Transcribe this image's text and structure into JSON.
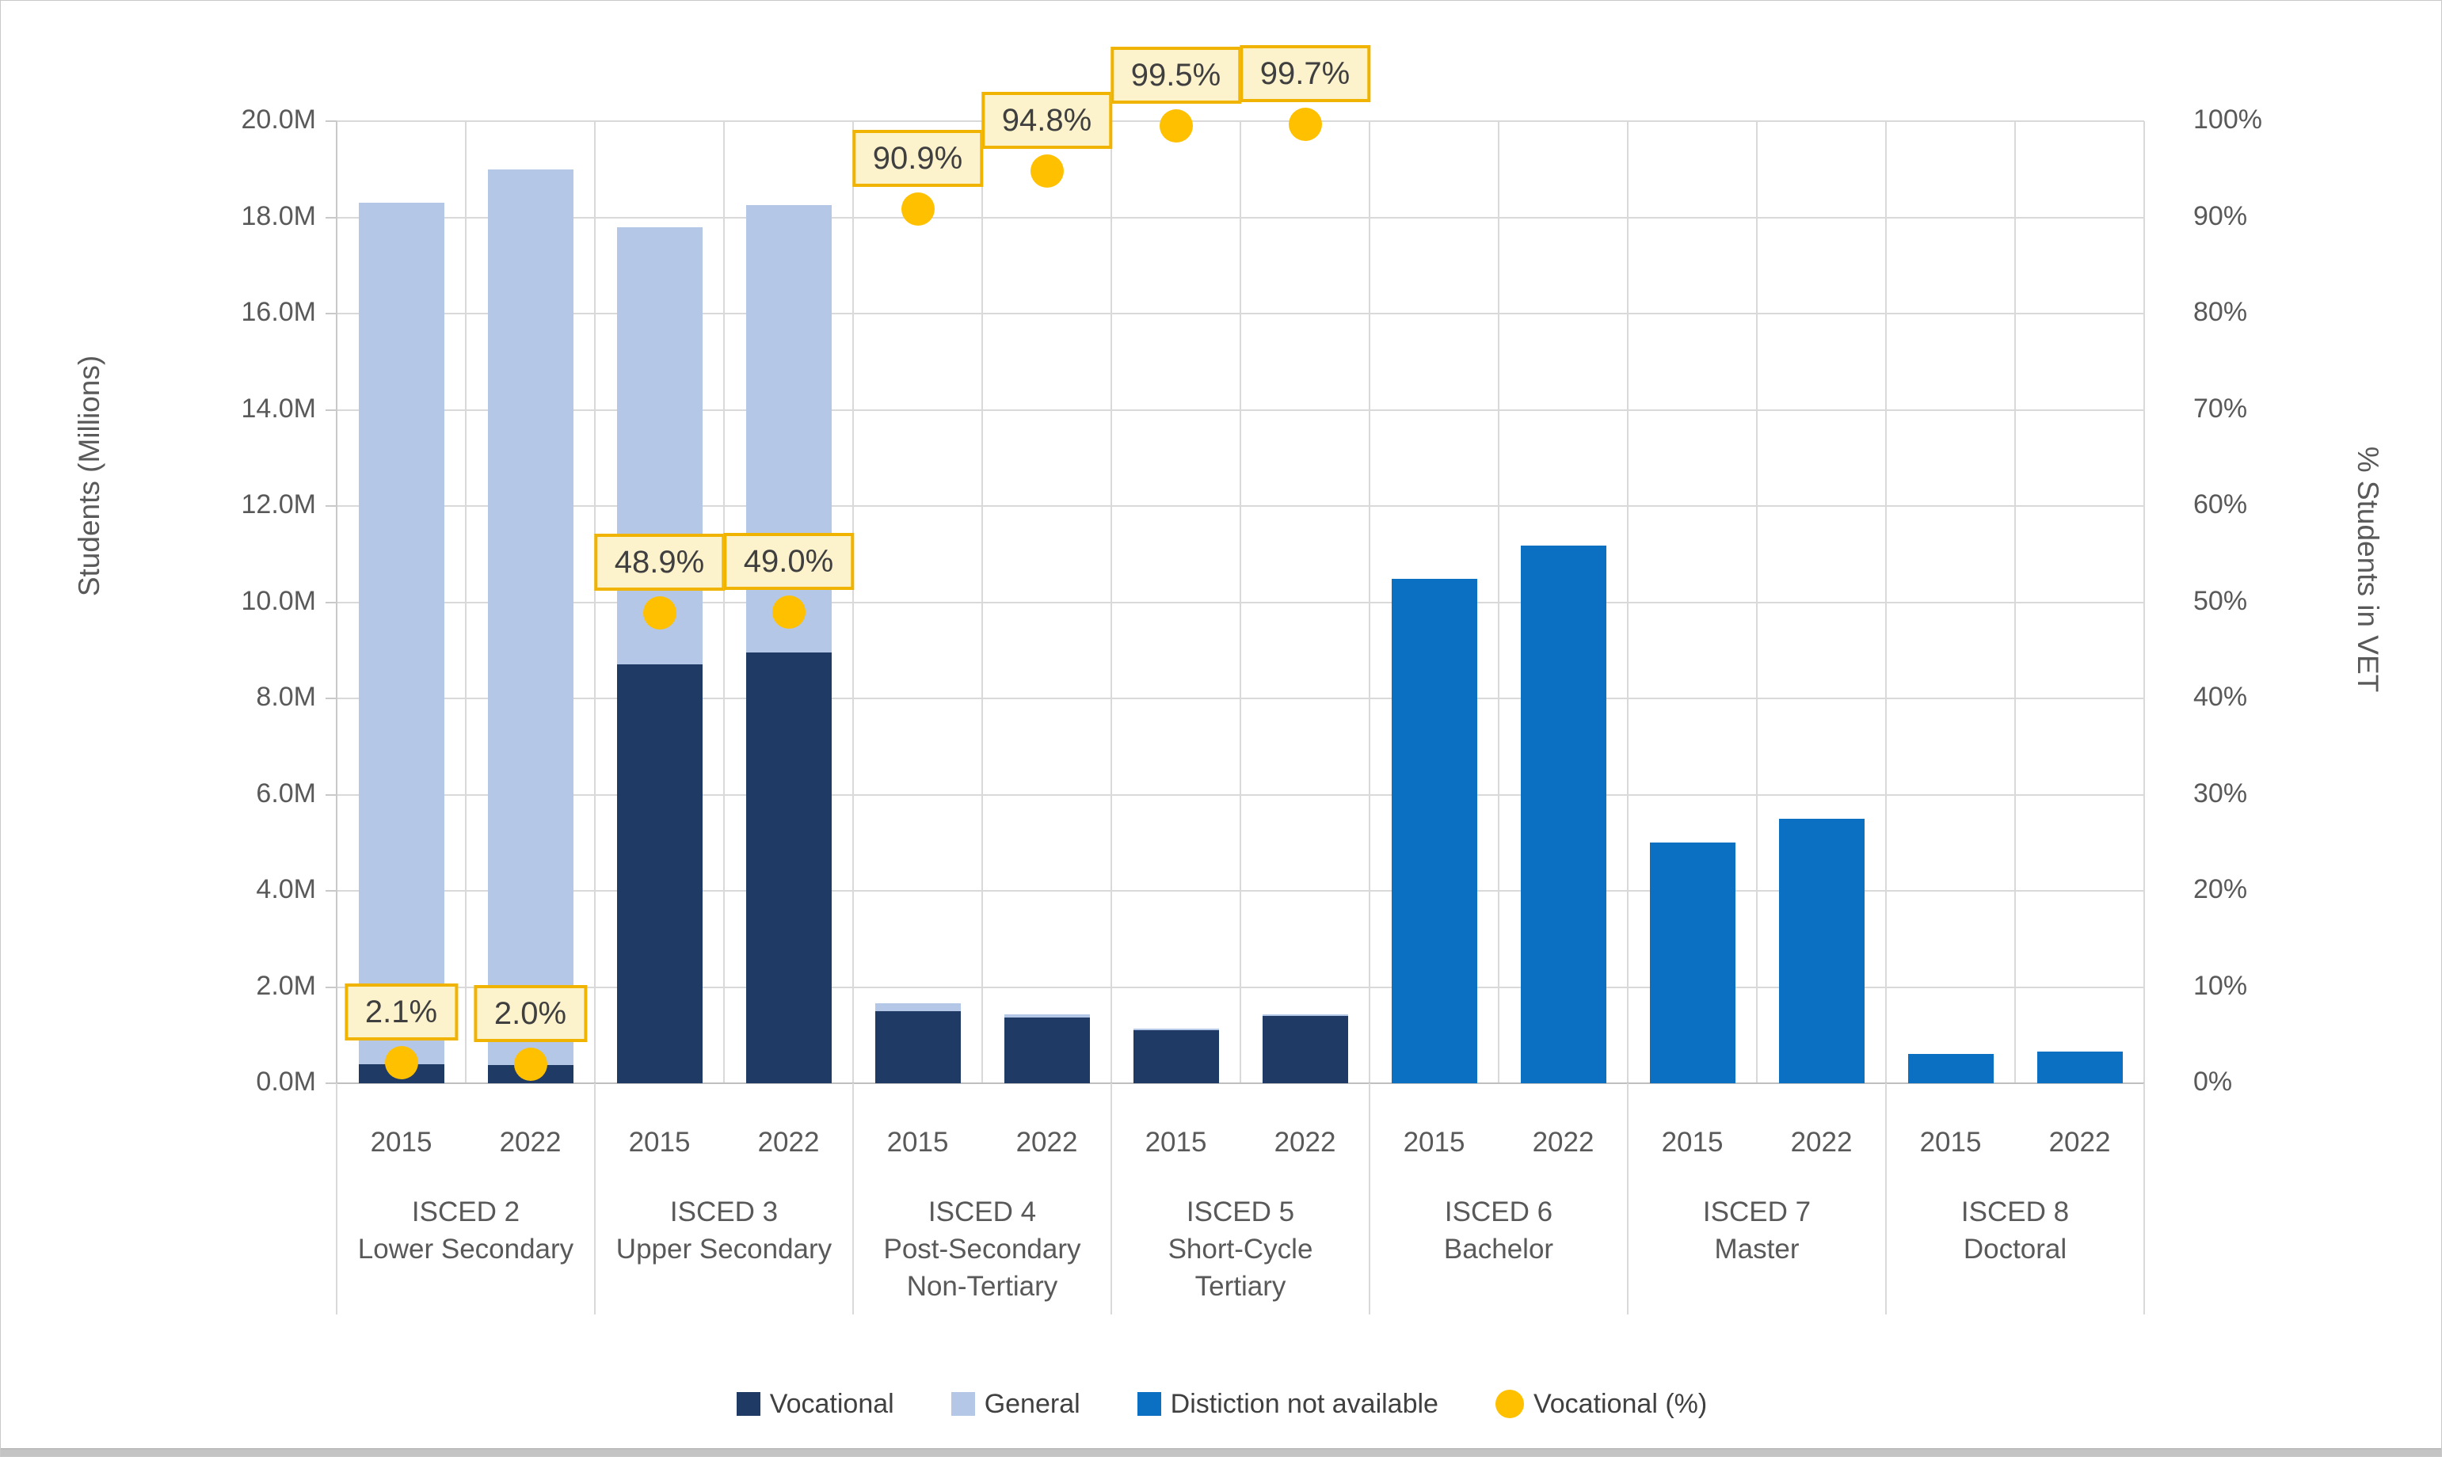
{
  "chart_data": {
    "type": "bar",
    "title": "",
    "left_axis": {
      "label": "Students (Millions)",
      "min": 0,
      "max": 20,
      "step": 2,
      "ticks": [
        "20.0M",
        "18.0M",
        "16.0M",
        "14.0M",
        "12.0M",
        "10.0M",
        "8.0M",
        "6.0M",
        "4.0M",
        "2.0M",
        "0.0M"
      ]
    },
    "right_axis": {
      "label": "% Students in VET",
      "min": 0,
      "max": 100,
      "step": 10,
      "ticks": [
        "100%",
        "90%",
        "80%",
        "70%",
        "60%",
        "50%",
        "40%",
        "30%",
        "20%",
        "10%",
        "0%"
      ]
    },
    "grid": "on",
    "legend_position": "bottom",
    "legend": [
      {
        "label": "Vocational",
        "marker": "square",
        "color": "#1f3a64"
      },
      {
        "label": "General",
        "marker": "square",
        "color": "#b4c7e7"
      },
      {
        "label": "Distiction not available",
        "marker": "square",
        "color": "#0b70c2"
      },
      {
        "label": "Vocational (%)",
        "marker": "circle",
        "color": "#ffc000"
      }
    ],
    "series_units": "millions of students",
    "groups": [
      {
        "label_lines": [
          "ISCED 2",
          "Lower Secondary"
        ],
        "years": [
          {
            "year": "2015",
            "vocational": 0.39,
            "general": 17.91,
            "distinction_not_available": null,
            "vocational_pct": 2.1,
            "pct_label": "2.1%"
          },
          {
            "year": "2022",
            "vocational": 0.38,
            "general": 18.62,
            "distinction_not_available": null,
            "vocational_pct": 2.0,
            "pct_label": "2.0%"
          }
        ]
      },
      {
        "label_lines": [
          "ISCED 3",
          "Upper Secondary"
        ],
        "years": [
          {
            "year": "2015",
            "vocational": 8.71,
            "general": 9.09,
            "distinction_not_available": null,
            "vocational_pct": 48.9,
            "pct_label": "48.9%"
          },
          {
            "year": "2022",
            "vocational": 8.95,
            "general": 9.3,
            "distinction_not_available": null,
            "vocational_pct": 49.0,
            "pct_label": "49.0%"
          }
        ]
      },
      {
        "label_lines": [
          "ISCED 4",
          "Post-Secondary",
          "Non-Tertiary"
        ],
        "years": [
          {
            "year": "2015",
            "vocational": 1.5,
            "general": 0.16,
            "distinction_not_available": null,
            "vocational_pct": 90.9,
            "pct_label": "90.9%"
          },
          {
            "year": "2022",
            "vocational": 1.36,
            "general": 0.07,
            "distinction_not_available": null,
            "vocational_pct": 94.8,
            "pct_label": "94.8%"
          }
        ]
      },
      {
        "label_lines": [
          "ISCED 5",
          "Short-Cycle",
          "Tertiary"
        ],
        "years": [
          {
            "year": "2015",
            "vocational": 1.1,
            "general": 0.006,
            "distinction_not_available": null,
            "vocational_pct": 99.5,
            "pct_label": "99.5%"
          },
          {
            "year": "2022",
            "vocational": 1.4,
            "general": 0.004,
            "distinction_not_available": null,
            "vocational_pct": 99.7,
            "pct_label": "99.7%"
          }
        ]
      },
      {
        "label_lines": [
          "ISCED 6",
          "Bachelor"
        ],
        "years": [
          {
            "year": "2015",
            "vocational": null,
            "general": null,
            "distinction_not_available": 10.48,
            "vocational_pct": null,
            "pct_label": null
          },
          {
            "year": "2022",
            "vocational": null,
            "general": null,
            "distinction_not_available": 11.17,
            "vocational_pct": null,
            "pct_label": null
          }
        ]
      },
      {
        "label_lines": [
          "ISCED 7",
          "Master"
        ],
        "years": [
          {
            "year": "2015",
            "vocational": null,
            "general": null,
            "distinction_not_available": 5.0,
            "vocational_pct": null,
            "pct_label": null
          },
          {
            "year": "2022",
            "vocational": null,
            "general": null,
            "distinction_not_available": 5.5,
            "vocational_pct": null,
            "pct_label": null
          }
        ]
      },
      {
        "label_lines": [
          "ISCED 8",
          "Doctoral"
        ],
        "years": [
          {
            "year": "2015",
            "vocational": null,
            "general": null,
            "distinction_not_available": 0.61,
            "vocational_pct": null,
            "pct_label": null
          },
          {
            "year": "2022",
            "vocational": null,
            "general": null,
            "distinction_not_available": 0.66,
            "vocational_pct": null,
            "pct_label": null
          }
        ]
      }
    ],
    "colors": {
      "vocational": "#1f3a64",
      "general": "#b4c7e7",
      "distinction_not_available": "#0b70c2",
      "dot": "#ffc000",
      "pct_label_fill": "#fcf2cc",
      "pct_label_border": "#f0b400",
      "gridline": "#d9d9d9",
      "axis_line": "#bfbfbf",
      "tick_text": "#595959"
    }
  }
}
